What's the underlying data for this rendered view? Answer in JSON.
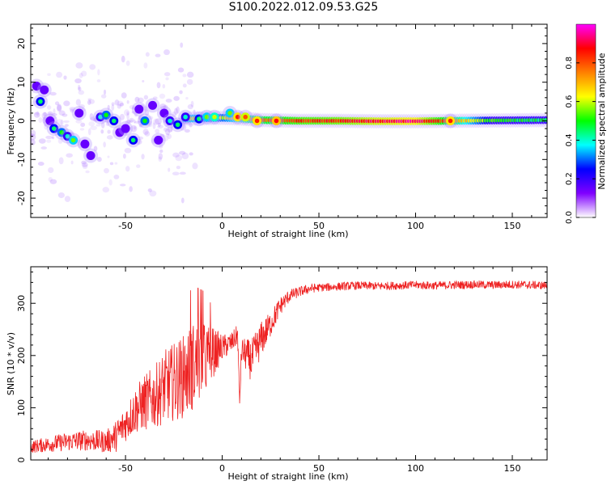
{
  "title": "S100.2022.012.09.53.G25",
  "chart_data": [
    {
      "type": "heatmap",
      "xlabel": "Height of straight line (km)",
      "ylabel": "Frequency (Hz)",
      "xlim": [
        -99,
        168
      ],
      "ylim": [
        -25,
        25
      ],
      "xticks": [
        -50,
        0,
        50,
        100,
        150
      ],
      "yticks": [
        -20,
        -10,
        0,
        10,
        20
      ],
      "colorbar": {
        "label": "Normalized spectral amplitude",
        "range": [
          0.0,
          1.0
        ],
        "ticks": [
          0.0,
          0.2,
          0.4,
          0.6,
          0.8
        ],
        "colors": [
          "#ffffff",
          "#8000ff",
          "#0000ff",
          "#00ffff",
          "#00ff00",
          "#ffff00",
          "#ff8000",
          "#ff0000",
          "#ff00ff"
        ]
      },
      "ridge": {
        "x": [
          -15,
          0,
          10,
          20,
          40,
          60,
          80,
          100,
          120,
          140,
          168
        ],
        "frequency": [
          0.6,
          0.8,
          0.6,
          0.2,
          0.0,
          0.0,
          -0.1,
          -0.1,
          0.0,
          0.1,
          0.2
        ],
        "amplitude": [
          0.7,
          0.65,
          0.75,
          0.82,
          0.88,
          0.9,
          0.95,
          0.97,
          0.8,
          0.55,
          0.5
        ]
      },
      "blobs": [
        {
          "x": -96,
          "frequency": 9,
          "amplitude": 0.2
        },
        {
          "x": -94,
          "frequency": 5,
          "amplitude": 0.45
        },
        {
          "x": -92,
          "frequency": 8,
          "amplitude": 0.3
        },
        {
          "x": -89,
          "frequency": 0,
          "amplitude": 0.3
        },
        {
          "x": -87,
          "frequency": -2,
          "amplitude": 0.45
        },
        {
          "x": -83,
          "frequency": -3,
          "amplitude": 0.5
        },
        {
          "x": -80,
          "frequency": -4,
          "amplitude": 0.4
        },
        {
          "x": -77,
          "frequency": -5,
          "amplitude": 0.55
        },
        {
          "x": -74,
          "frequency": 2,
          "amplitude": 0.3
        },
        {
          "x": -71,
          "frequency": -6,
          "amplitude": 0.25
        },
        {
          "x": -68,
          "frequency": -9,
          "amplitude": 0.2
        },
        {
          "x": -63,
          "frequency": 1,
          "amplitude": 0.4
        },
        {
          "x": -60,
          "frequency": 1.5,
          "amplitude": 0.5
        },
        {
          "x": -56,
          "frequency": 0,
          "amplitude": 0.45
        },
        {
          "x": -53,
          "frequency": -3,
          "amplitude": 0.35
        },
        {
          "x": -50,
          "frequency": -2,
          "amplitude": 0.25
        },
        {
          "x": -46,
          "frequency": -5,
          "amplitude": 0.45
        },
        {
          "x": -43,
          "frequency": 3,
          "amplitude": 0.3
        },
        {
          "x": -40,
          "frequency": 0,
          "amplitude": 0.5
        },
        {
          "x": -36,
          "frequency": 4,
          "amplitude": 0.3
        },
        {
          "x": -33,
          "frequency": -5,
          "amplitude": 0.25
        },
        {
          "x": -30,
          "frequency": 2,
          "amplitude": 0.35
        },
        {
          "x": -27,
          "frequency": 0,
          "amplitude": 0.4
        },
        {
          "x": -23,
          "frequency": -1,
          "amplitude": 0.45
        },
        {
          "x": -19,
          "frequency": 1,
          "amplitude": 0.4
        },
        {
          "x": -12,
          "frequency": 0.5,
          "amplitude": 0.45
        },
        {
          "x": -8,
          "frequency": 1,
          "amplitude": 0.55
        },
        {
          "x": -4,
          "frequency": 1,
          "amplitude": 0.6
        },
        {
          "x": 4,
          "frequency": 2,
          "amplitude": 0.55
        },
        {
          "x": 8,
          "frequency": 1,
          "amplitude": 0.85
        },
        {
          "x": 12,
          "frequency": 1,
          "amplitude": 0.8
        },
        {
          "x": 18,
          "frequency": 0,
          "amplitude": 0.85
        },
        {
          "x": 28,
          "frequency": 0,
          "amplitude": 0.88
        },
        {
          "x": 118,
          "frequency": 0,
          "amplitude": 0.85
        }
      ]
    },
    {
      "type": "line",
      "xlabel": "Height of straight line (km)",
      "ylabel": "SNR (10 * v/v)",
      "xlim": [
        -99,
        168
      ],
      "ylim": [
        0,
        370
      ],
      "xticks": [
        -50,
        0,
        50,
        100,
        150
      ],
      "yticks": [
        0,
        100,
        200,
        300
      ],
      "series": [
        {
          "color": "#ee2222",
          "x": [
            -99,
            -90,
            -80,
            -70,
            -60,
            -55,
            -50,
            -45,
            -40,
            -35,
            -30,
            -25,
            -20,
            -15,
            -10,
            -5,
            0,
            5,
            8,
            9,
            10,
            15,
            20,
            25,
            30,
            35,
            40,
            45,
            50,
            60,
            70,
            80,
            90,
            100,
            110,
            120,
            130,
            140,
            150,
            160,
            168
          ],
          "y": [
            25,
            30,
            35,
            38,
            35,
            45,
            70,
            95,
            110,
            120,
            140,
            150,
            160,
            180,
            190,
            205,
            215,
            225,
            240,
            110,
            210,
            190,
            230,
            260,
            295,
            315,
            322,
            328,
            330,
            332,
            334,
            333,
            334,
            335,
            334,
            335,
            336,
            335,
            336,
            335,
            334
          ],
          "noise": [
            12,
            15,
            18,
            20,
            22,
            30,
            35,
            45,
            55,
            60,
            70,
            75,
            80,
            85,
            75,
            50,
            25,
            20,
            20,
            15,
            25,
            40,
            35,
            25,
            18,
            12,
            10,
            9,
            8,
            8,
            8,
            8,
            8,
            8,
            8,
            8,
            8,
            8,
            8,
            8,
            8
          ]
        }
      ]
    }
  ]
}
